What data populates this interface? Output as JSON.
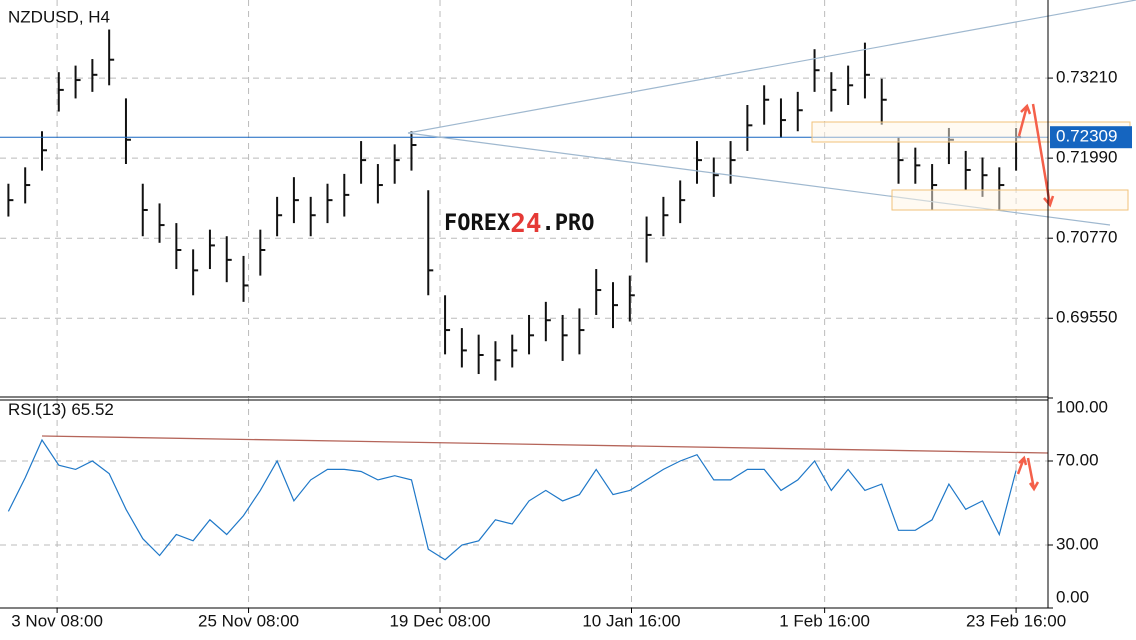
{
  "chart_data": [
    {
      "type": "ohlc",
      "title": "NZDUSD, H4",
      "x": [
        0,
        1,
        2,
        3,
        4,
        5,
        6,
        7,
        8,
        9,
        10,
        11,
        12,
        13,
        14,
        15,
        16,
        17,
        18,
        19,
        20,
        21,
        22,
        23,
        24,
        25,
        26,
        27,
        28,
        29,
        30,
        31,
        32,
        33,
        34,
        35,
        36,
        37,
        38,
        39,
        40,
        41,
        42,
        43,
        44,
        45,
        46,
        47,
        48,
        49,
        50,
        51,
        52,
        53,
        54,
        55,
        56,
        57,
        58,
        59,
        60
      ],
      "high": [
        0.716,
        0.7185,
        0.724,
        0.733,
        0.734,
        0.735,
        0.7395,
        0.729,
        0.716,
        0.713,
        0.71,
        0.706,
        0.709,
        0.708,
        0.705,
        0.709,
        0.714,
        0.717,
        0.714,
        0.716,
        0.7175,
        0.7225,
        0.719,
        0.722,
        0.724,
        0.715,
        0.699,
        0.694,
        0.693,
        0.692,
        0.693,
        0.696,
        0.698,
        0.696,
        0.697,
        0.703,
        0.701,
        0.702,
        0.711,
        0.714,
        0.7165,
        0.7225,
        0.72,
        0.7225,
        0.728,
        0.731,
        0.729,
        0.73,
        0.7365,
        0.733,
        0.734,
        0.7375,
        0.732,
        0.723,
        0.7215,
        0.719,
        0.7245,
        0.721,
        0.72,
        0.7185,
        0.7245
      ],
      "low": [
        0.711,
        0.713,
        0.718,
        0.727,
        0.729,
        0.73,
        0.731,
        0.719,
        0.708,
        0.707,
        0.703,
        0.699,
        0.703,
        0.701,
        0.698,
        0.702,
        0.708,
        0.71,
        0.708,
        0.71,
        0.711,
        0.716,
        0.713,
        0.716,
        0.718,
        0.699,
        0.69,
        0.688,
        0.687,
        0.686,
        0.688,
        0.69,
        0.692,
        0.689,
        0.69,
        0.696,
        0.694,
        0.695,
        0.704,
        0.708,
        0.71,
        0.716,
        0.714,
        0.716,
        0.721,
        0.725,
        0.723,
        0.724,
        0.73,
        0.727,
        0.728,
        0.729,
        0.725,
        0.716,
        0.716,
        0.712,
        0.719,
        0.715,
        0.714,
        0.712,
        0.718
      ],
      "close": [
        0.7135,
        0.7158,
        0.7211,
        0.7303,
        0.7318,
        0.7326,
        0.7349,
        0.7227,
        0.712,
        0.7097,
        0.7059,
        0.7028,
        0.7066,
        0.7044,
        0.7005,
        0.7059,
        0.7112,
        0.7135,
        0.7112,
        0.7135,
        0.7143,
        0.7196,
        0.7158,
        0.7196,
        0.7219,
        0.7028,
        0.6937,
        0.6906,
        0.6899,
        0.6891,
        0.6906,
        0.6929,
        0.6952,
        0.6929,
        0.6937,
        0.6998,
        0.6975,
        0.699,
        0.7082,
        0.7112,
        0.7135,
        0.7196,
        0.7173,
        0.7196,
        0.7249,
        0.7288,
        0.7257,
        0.7272,
        0.7333,
        0.7303,
        0.731,
        0.7326,
        0.7288,
        0.7196,
        0.7188,
        0.7158,
        0.7227,
        0.7181,
        0.7173,
        0.7158,
        0.7231
      ],
      "color": "#111111",
      "last_price": 0.72309,
      "last_price_color": "#1565c0",
      "xlim": [
        -0.5,
        61.9
      ],
      "ylim": [
        0.6835,
        0.744
      ],
      "yticks": [
        {
          "value": 0.6955,
          "label": "0.69550"
        },
        {
          "value": 0.7077,
          "label": "0.70770"
        },
        {
          "value": 0.7199,
          "label": "0.71990"
        },
        {
          "value": 0.7321,
          "label": "0.73210"
        }
      ],
      "grid": true
    },
    {
      "type": "line",
      "title": "RSI(13)",
      "current": 65.52,
      "x": [
        0,
        1,
        2,
        3,
        4,
        5,
        6,
        7,
        8,
        9,
        10,
        11,
        12,
        13,
        14,
        15,
        16,
        17,
        18,
        19,
        20,
        21,
        22,
        23,
        24,
        25,
        26,
        27,
        28,
        29,
        30,
        31,
        32,
        33,
        34,
        35,
        36,
        37,
        38,
        39,
        40,
        41,
        42,
        43,
        44,
        45,
        46,
        47,
        48,
        49,
        50,
        51,
        52,
        53,
        54,
        55,
        56,
        57,
        58,
        59,
        60
      ],
      "series": [
        {
          "name": "RSI(13)",
          "color": "#1f78c8",
          "values": [
            46,
            62,
            80,
            68,
            66,
            70,
            64,
            47,
            33,
            25,
            35,
            32,
            42,
            35,
            44,
            56,
            70,
            51,
            61,
            66,
            66,
            65,
            61,
            63,
            61,
            28,
            23,
            30,
            32,
            42,
            40,
            51,
            56,
            51,
            54,
            66,
            54,
            56,
            61,
            66,
            70,
            73,
            61,
            61,
            66,
            66,
            56,
            61,
            70,
            56,
            66,
            56,
            59,
            37,
            37,
            42,
            59,
            47,
            51,
            35,
            65.52
          ]
        }
      ],
      "xlim": [
        -0.5,
        61.9
      ],
      "xticks": [
        {
          "value": 2.9,
          "label": "3 Nov 08:00"
        },
        {
          "value": 14.3,
          "label": "25 Nov 08:00"
        },
        {
          "value": 25.7,
          "label": "19 Dec 08:00"
        },
        {
          "value": 37.1,
          "label": "10 Jan 16:00"
        },
        {
          "value": 48.6,
          "label": "1 Feb 16:00"
        },
        {
          "value": 60,
          "label": "23 Feb 16:00"
        }
      ],
      "ylim": [
        0,
        100
      ],
      "yticks": [
        {
          "value": 0,
          "label": "0.00"
        },
        {
          "value": 30,
          "label": "30.00"
        },
        {
          "value": 70,
          "label": "70.00"
        },
        {
          "value": 100,
          "label": "100.00"
        }
      ],
      "grid": true
    }
  ],
  "watermark": {
    "part1": "FOREX",
    "part2": "24",
    "part3": ".PRO"
  }
}
